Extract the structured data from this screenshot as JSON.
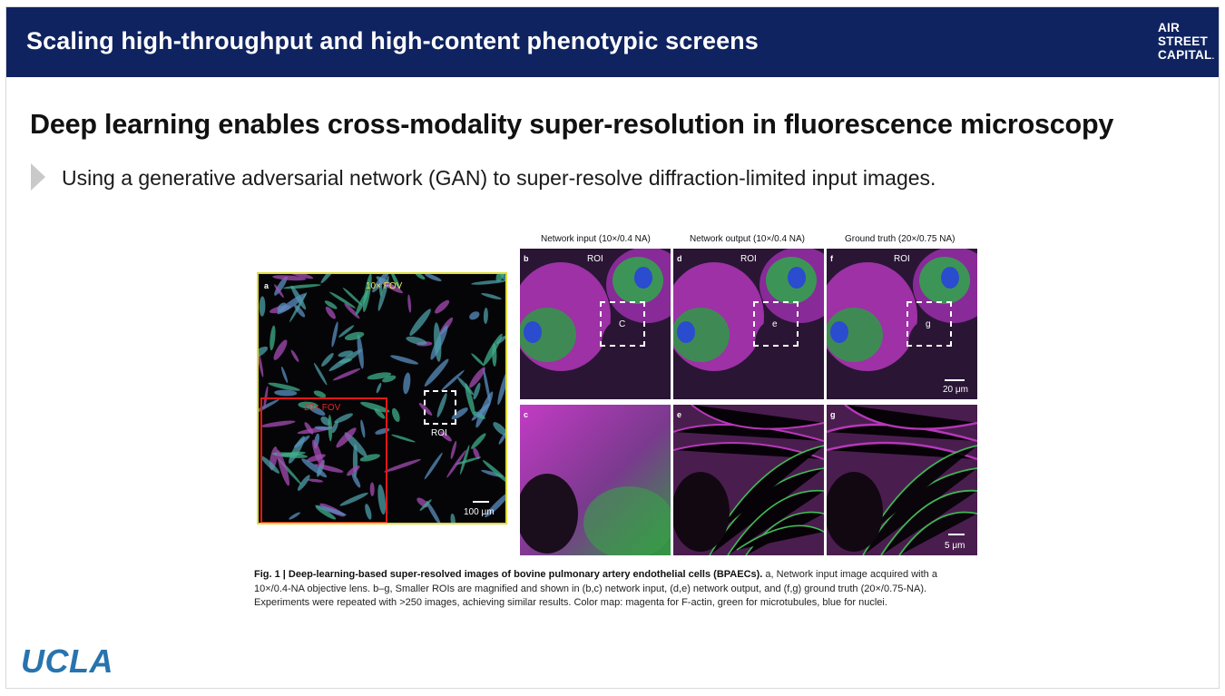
{
  "header": {
    "title": "Scaling high-throughput and high-content phenotypic screens",
    "logo_lines": [
      "AIR",
      "STREET",
      "CAPITAL"
    ],
    "bg_color": "#0f2360"
  },
  "slide": {
    "title": "Deep learning enables cross-modality super-resolution in fluorescence microscopy",
    "bullet": "Using a generative adversarial network (GAN) to super-resolve diffraction-limited input images."
  },
  "figure": {
    "panel_a": {
      "letter": "a",
      "fov10": "10× FOV",
      "fov20": "20× FOV",
      "roi": "ROI",
      "scale": "100 μm"
    },
    "columns": [
      {
        "heading": "Network input (10×/0.4 NA)",
        "top_letter": "b",
        "roi_label": "ROI",
        "box_label": "C",
        "bottom_letter": "c"
      },
      {
        "heading": "Network output (10×/0.4 NA)",
        "top_letter": "d",
        "roi_label": "ROI",
        "box_label": "e",
        "bottom_letter": "e"
      },
      {
        "heading": "Ground truth (20×/0.75 NA)",
        "top_letter": "f",
        "roi_label": "ROI",
        "box_label": "g",
        "bottom_letter": "g"
      }
    ],
    "scale_top": "20 μm",
    "scale_bottom": "5 μm"
  },
  "caption": {
    "bold_prefix": "Fig. 1 | Deep-learning-based super-resolved images of bovine pulmonary artery endothelial cells (BPAECs).",
    "line1": " a, Network input image acquired with a",
    "line2": "10×/0.4-NA objective lens. b–g, Smaller ROIs are magnified and shown in (b,c) network input, (d,e) network output, and (f,g) ground truth (20×/0.75-NA).",
    "line3": "Experiments were repeated with >250 images, achieving similar results. Color map: magenta for F-actin, green for microtubules, blue for nuclei."
  },
  "footer": {
    "logo": "UCLA",
    "logo_color": "#2774ae"
  }
}
